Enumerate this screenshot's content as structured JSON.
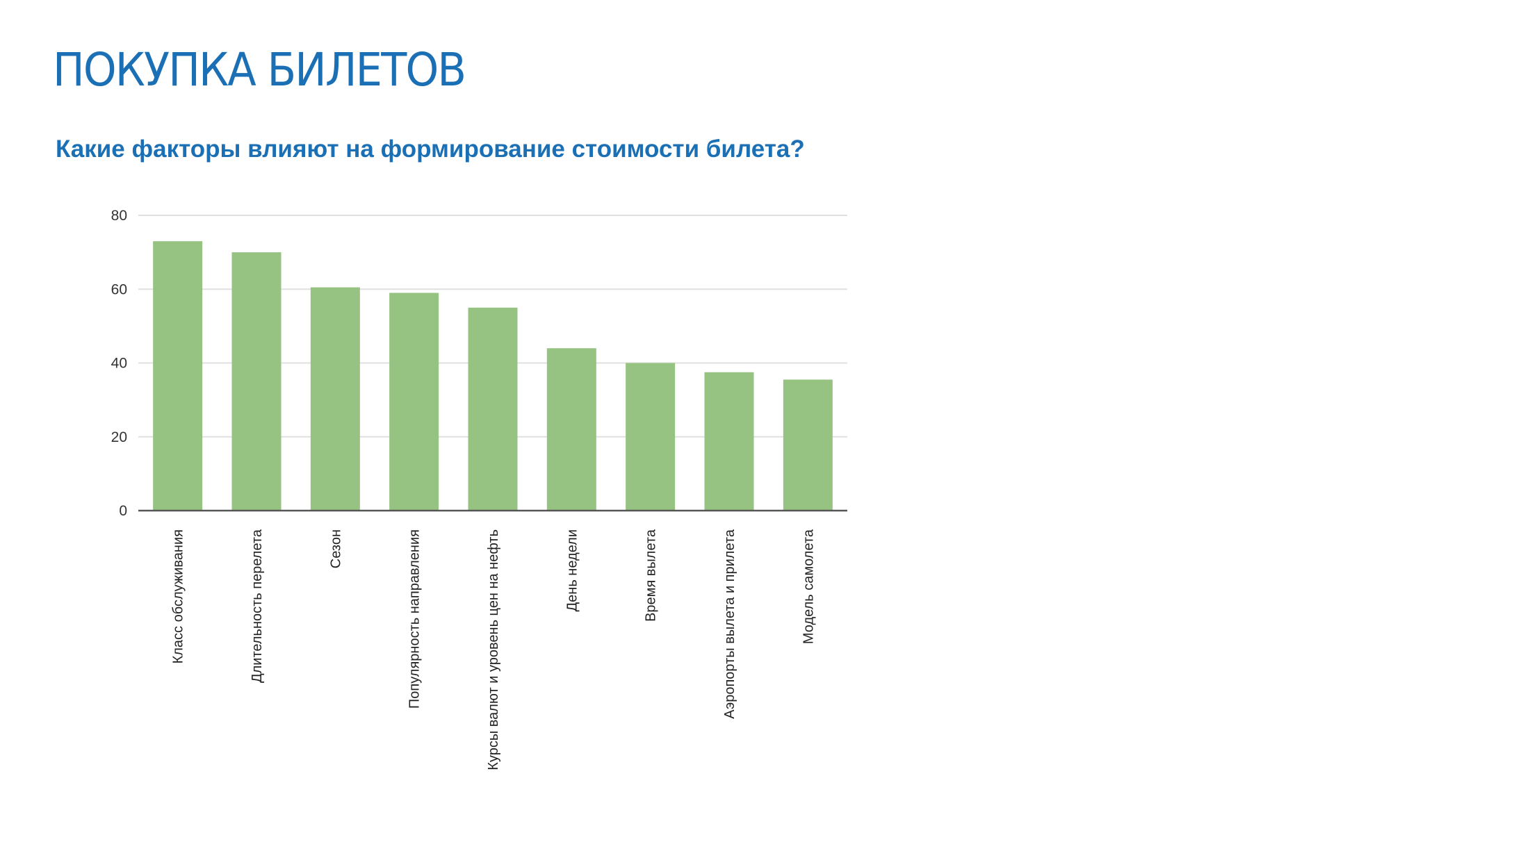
{
  "page": {
    "title": "ПОКУПКА БИЛЕТОВ",
    "subtitle": "Какие факторы влияют на формирование стоимости билета?"
  },
  "colors": {
    "title": "#1a6fb5",
    "bar": "#96c282",
    "grid": "#e0e0e0",
    "axis": "#555555"
  },
  "chart_data": {
    "type": "bar",
    "title": "Какие факторы влияют на формирование стоимости билета?",
    "xlabel": "",
    "ylabel": "",
    "ylim": [
      0,
      80
    ],
    "yticks": [
      0,
      20,
      40,
      60,
      80
    ],
    "grid": true,
    "categories": [
      "Класс обслуживания",
      "Длительность перелета",
      "Сезон",
      "Популярность направления",
      "Курсы валют и уровень цен на нефть",
      "День недели",
      "Время вылета",
      "Аэропорты вылета и прилета",
      "Модель самолета"
    ],
    "values": [
      73,
      70,
      60.5,
      59,
      55,
      44,
      40,
      37.5,
      35.5
    ]
  }
}
